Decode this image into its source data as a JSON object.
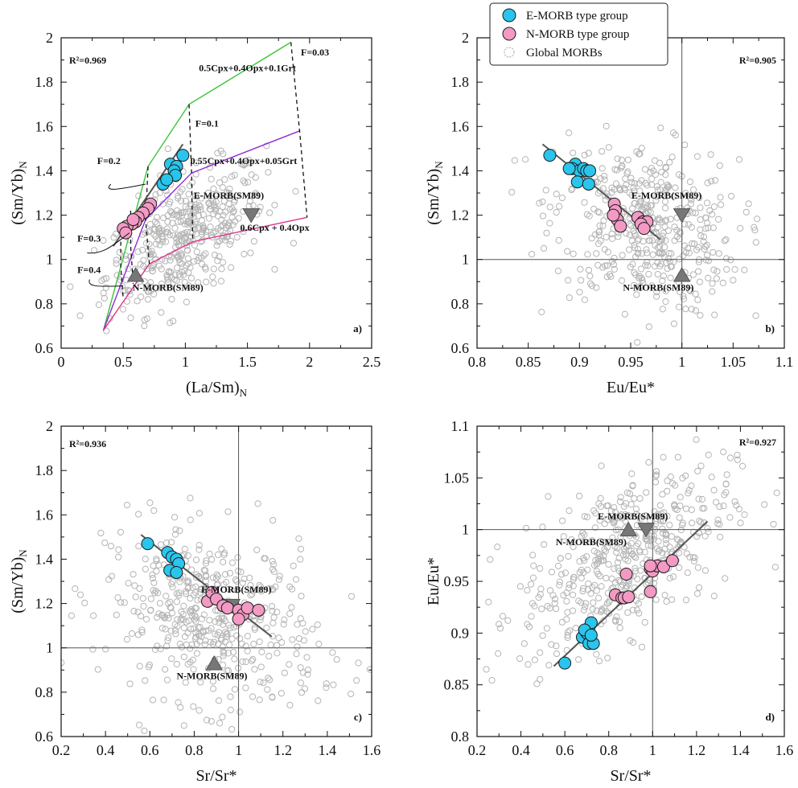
{
  "legend": {
    "items": [
      {
        "label": "E-MORB type group",
        "marker": "circle",
        "fill": "#29c5ec",
        "stroke": "#1a1a1a"
      },
      {
        "label": "N-MORB type group",
        "marker": "circle",
        "fill": "#f29ac4",
        "stroke": "#1a1a1a"
      },
      {
        "label": "Global MORBs",
        "marker": "circle-open",
        "fill": "none",
        "stroke": "#b4b4b4"
      }
    ]
  },
  "colors": {
    "e_morb": "#29c5ec",
    "n_morb": "#f29ac4",
    "global": "#b4b4b4",
    "ref_marker": "#777777",
    "trend": "#555555",
    "green": "#3cc23c",
    "purple": "#8e2ad6",
    "magenta": "#e0348c"
  },
  "chart_data": [
    {
      "type": "scatter",
      "panel_label": "a)",
      "xlabel": "(La/Sm)N",
      "ylabel": "(Sm/Yb)N",
      "xlim": [
        0,
        2.5
      ],
      "ylim": [
        0.6,
        2.0
      ],
      "xticks": [
        "0",
        "0.5",
        "1",
        "1.5",
        "2",
        "2.5"
      ],
      "yticks": [
        "0.6",
        "0.8",
        "1",
        "1.2",
        "1.4",
        "1.6",
        "1.8",
        "2"
      ],
      "r2": "R²=0.969",
      "series": [
        {
          "name": "E-MORB type group",
          "points": [
            [
              0.98,
              1.47
            ],
            [
              0.88,
              1.43
            ],
            [
              0.93,
              1.42
            ],
            [
              0.91,
              1.4
            ],
            [
              0.92,
              1.38
            ],
            [
              0.82,
              1.34
            ],
            [
              0.85,
              1.36
            ]
          ]
        },
        {
          "name": "N-MORB type group",
          "points": [
            [
              0.72,
              1.25
            ],
            [
              0.7,
              1.23
            ],
            [
              0.66,
              1.21
            ],
            [
              0.62,
              1.19
            ],
            [
              0.6,
              1.17
            ],
            [
              0.57,
              1.16
            ],
            [
              0.53,
              1.15
            ],
            [
              0.5,
              1.14
            ],
            [
              0.52,
              1.12
            ],
            [
              0.58,
              1.18
            ]
          ]
        },
        {
          "name": "Global MORBs",
          "points": "generated"
        }
      ],
      "references": [
        {
          "label": "E-MORB(SM89)",
          "marker": "triangle-down",
          "x": 1.53,
          "y": 1.2
        },
        {
          "label": "N-MORB(SM89)",
          "marker": "triangle-up",
          "x": 0.6,
          "y": 0.93
        }
      ],
      "trend": [
        [
          0.42,
          1.06
        ],
        [
          0.98,
          1.52
        ]
      ],
      "melting_curves": [
        {
          "label": "0.5Cpx+0.4Opx+0.1Grt",
          "color": "#3cc23c",
          "points": [
            [
              0.34,
              0.68
            ],
            [
              0.7,
              1.42
            ],
            [
              1.03,
              1.7
            ],
            [
              1.85,
              1.98
            ]
          ]
        },
        {
          "label": "0.55Cpx+0.4Opx+0.05Grt",
          "color": "#8e2ad6",
          "points": [
            [
              0.34,
              0.68
            ],
            [
              0.68,
              1.18
            ],
            [
              1.05,
              1.39
            ],
            [
              1.92,
              1.58
            ]
          ]
        },
        {
          "label": "0.6Cpx + 0.4Opx",
          "color": "#e0348c",
          "points": [
            [
              0.34,
              0.68
            ],
            [
              0.71,
              0.98
            ],
            [
              1.06,
              1.08
            ],
            [
              1.98,
              1.19
            ]
          ]
        }
      ],
      "melt_fraction_lines": [
        {
          "label": "F=0.03",
          "points": [
            [
              1.85,
              1.98
            ],
            [
              1.92,
              1.58
            ],
            [
              1.98,
              1.19
            ]
          ]
        },
        {
          "label": "F=0.1",
          "points": [
            [
              1.03,
              1.7
            ],
            [
              1.05,
              1.39
            ],
            [
              1.06,
              1.08
            ]
          ]
        },
        {
          "label": "F=0.2",
          "points": [
            [
              0.7,
              1.42
            ],
            [
              0.68,
              1.18
            ],
            [
              0.71,
              0.98
            ]
          ]
        },
        {
          "label": "F=0.3",
          "points": [
            [
              0.56,
              1.22
            ],
            [
              0.56,
              1.06
            ],
            [
              0.58,
              0.89
            ]
          ]
        },
        {
          "label": "F=0.4",
          "points": [
            [
              0.48,
              1.08
            ],
            [
              0.48,
              0.97
            ],
            [
              0.5,
              0.82
            ]
          ]
        }
      ]
    },
    {
      "type": "scatter",
      "panel_label": "b)",
      "xlabel": "Eu/Eu*",
      "ylabel": "(Sm/Yb)N",
      "xlim": [
        0.8,
        1.1
      ],
      "ylim": [
        0.6,
        2.0
      ],
      "xticks": [
        "0.8",
        "0.85",
        "0.9",
        "0.95",
        "1",
        "1.05",
        "1.1"
      ],
      "yticks": [
        "0.6",
        "0.8",
        "1",
        "1.2",
        "1.4",
        "1.6",
        "1.8",
        "2"
      ],
      "r2": "R²=0.905",
      "series": [
        {
          "name": "E-MORB type group",
          "points": [
            [
              0.871,
              1.47
            ],
            [
              0.896,
              1.43
            ],
            [
              0.893,
              1.41
            ],
            [
              0.9,
              1.4
            ],
            [
              0.904,
              1.41
            ],
            [
              0.907,
              1.4
            ],
            [
              0.91,
              1.4
            ],
            [
              0.898,
              1.35
            ],
            [
              0.909,
              1.34
            ],
            [
              0.89,
              1.41
            ]
          ]
        },
        {
          "name": "N-MORB type group",
          "points": [
            [
              0.934,
              1.25
            ],
            [
              0.935,
              1.22
            ],
            [
              0.937,
              1.18
            ],
            [
              0.94,
              1.15
            ],
            [
              0.957,
              1.19
            ],
            [
              0.962,
              1.17
            ],
            [
              0.966,
              1.17
            ],
            [
              0.96,
              1.16
            ],
            [
              0.963,
              1.14
            ],
            [
              0.933,
              1.2
            ]
          ]
        },
        {
          "name": "Global MORBs",
          "points": "generated"
        }
      ],
      "references": [
        {
          "label": "E-MORB(SM89)",
          "marker": "triangle-down",
          "x": 1.0,
          "y": 1.2
        },
        {
          "label": "N-MORB(SM89)",
          "marker": "triangle-up",
          "x": 1.0,
          "y": 0.93
        }
      ],
      "trend": [
        [
          0.864,
          1.52
        ],
        [
          0.979,
          1.09
        ]
      ],
      "ref_lines": {
        "x": 1.0,
        "y": 1.0
      }
    },
    {
      "type": "scatter",
      "panel_label": "c)",
      "xlabel": "Sr/Sr*",
      "ylabel": "(Sm/Yb)N",
      "xlim": [
        0.2,
        1.6
      ],
      "ylim": [
        0.6,
        2.0
      ],
      "xticks": [
        "0.2",
        "0.4",
        "0.6",
        "0.8",
        "1",
        "1.2",
        "1.4",
        "1.6"
      ],
      "yticks": [
        "0.6",
        "0.8",
        "1",
        "1.2",
        "1.4",
        "1.6",
        "1.8",
        "2"
      ],
      "r2": "R²=0.936",
      "series": [
        {
          "name": "E-MORB type group",
          "points": [
            [
              0.59,
              1.47
            ],
            [
              0.68,
              1.43
            ],
            [
              0.7,
              1.41
            ],
            [
              0.72,
              1.4
            ],
            [
              0.73,
              1.38
            ],
            [
              0.69,
              1.35
            ],
            [
              0.72,
              1.34
            ]
          ]
        },
        {
          "name": "N-MORB type group",
          "points": [
            [
              0.86,
              1.21
            ],
            [
              0.88,
              1.25
            ],
            [
              0.9,
              1.22
            ],
            [
              0.93,
              1.19
            ],
            [
              0.95,
              1.18
            ],
            [
              1.0,
              1.17
            ],
            [
              1.02,
              1.15
            ],
            [
              1.04,
              1.18
            ],
            [
              1.09,
              1.17
            ],
            [
              1.0,
              1.13
            ]
          ]
        },
        {
          "name": "Global MORBs",
          "points": "generated"
        }
      ],
      "references": [
        {
          "label": "E-MORB(SM89)",
          "marker": "triangle-down",
          "x": 0.97,
          "y": 1.19
        },
        {
          "label": "N-MORB(SM89)",
          "marker": "triangle-up",
          "x": 0.89,
          "y": 0.93
        }
      ],
      "trend": [
        [
          0.56,
          1.51
        ],
        [
          1.15,
          1.05
        ]
      ],
      "ref_lines": {
        "x": 1.0,
        "y": 1.0
      }
    },
    {
      "type": "scatter",
      "panel_label": "d)",
      "xlabel": "Sr/Sr*",
      "ylabel": "Eu/Eu*",
      "xlim": [
        0.2,
        1.6
      ],
      "ylim": [
        0.8,
        1.1
      ],
      "xticks": [
        "0.2",
        "0.4",
        "0.6",
        "0.8",
        "1",
        "1.2",
        "1.4",
        "1.6"
      ],
      "yticks": [
        "0.8",
        "0.85",
        "0.9",
        "0.95",
        "1",
        "1.05",
        "1.1"
      ],
      "r2": "R²=0.927",
      "series": [
        {
          "name": "E-MORB type group",
          "points": [
            [
              0.6,
              0.871
            ],
            [
              0.68,
              0.896
            ],
            [
              0.7,
              0.9
            ],
            [
              0.71,
              0.905
            ],
            [
              0.72,
              0.91
            ],
            [
              0.71,
              0.89
            ],
            [
              0.73,
              0.89
            ],
            [
              0.69,
              0.903
            ],
            [
              0.72,
              0.898
            ]
          ]
        },
        {
          "name": "N-MORB type group",
          "points": [
            [
              0.83,
              0.937
            ],
            [
              0.86,
              0.934
            ],
            [
              0.87,
              0.934
            ],
            [
              0.89,
              0.935
            ],
            [
              0.88,
              0.957
            ],
            [
              0.99,
              0.94
            ],
            [
              0.99,
              0.962
            ],
            [
              1.0,
              0.96
            ],
            [
              1.02,
              0.965
            ],
            [
              1.05,
              0.964
            ],
            [
              1.09,
              0.97
            ],
            [
              0.99,
              0.965
            ]
          ]
        },
        {
          "name": "Global MORBs",
          "points": "generated"
        }
      ],
      "references": [
        {
          "label": "E-MORB(SM89)",
          "marker": "triangle-down",
          "x": 0.97,
          "y": 1.0
        },
        {
          "label": "N-MORB(SM89)",
          "marker": "triangle-up",
          "x": 0.89,
          "y": 1.0
        }
      ],
      "trend": [
        [
          0.55,
          0.868
        ],
        [
          1.25,
          1.008
        ]
      ],
      "ref_lines": {
        "x": 1.0,
        "y": 1.0
      }
    }
  ]
}
